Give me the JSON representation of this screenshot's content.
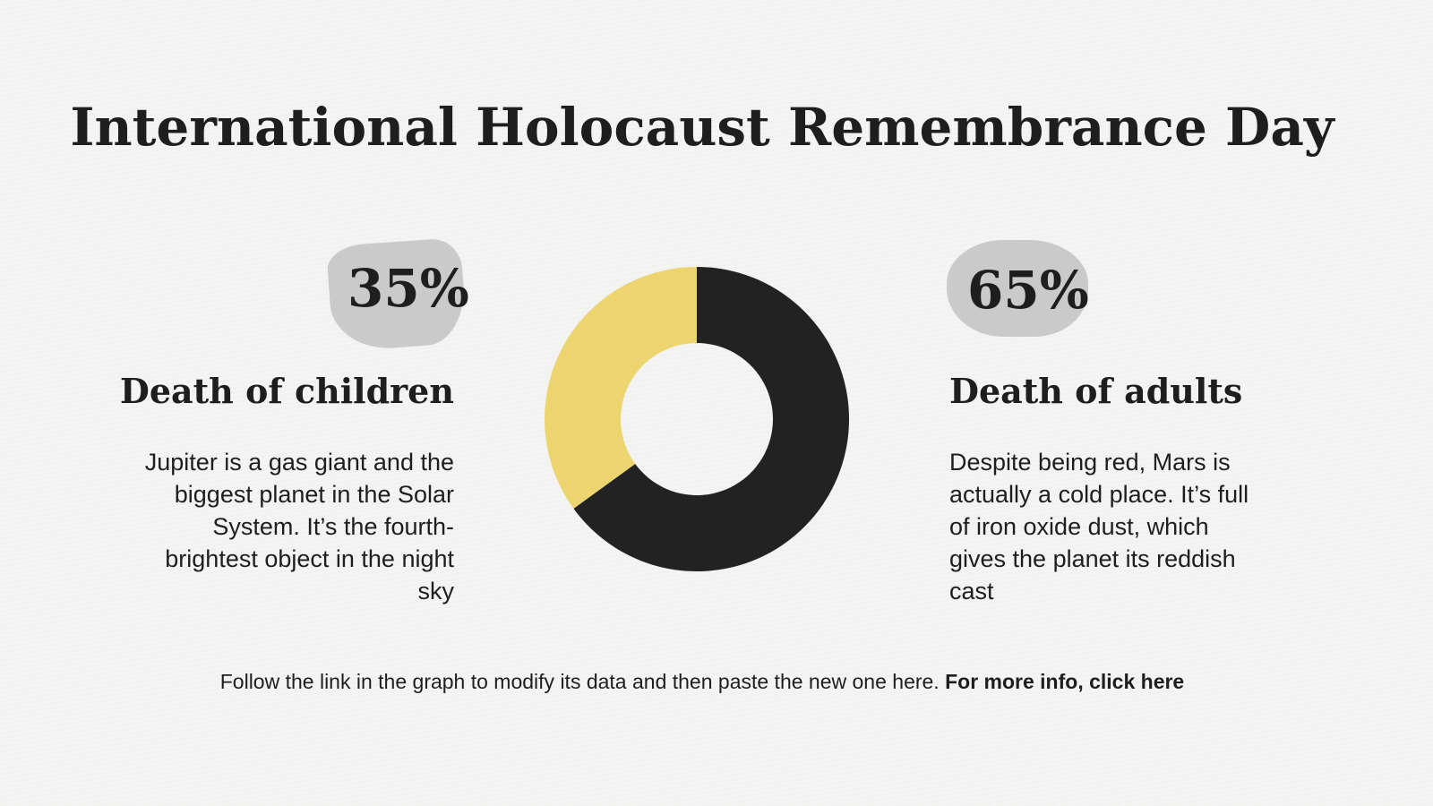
{
  "slide": {
    "title": "International Holocaust Remembrance Day",
    "left": {
      "percent": "35%",
      "heading": "Death of children",
      "body": "Jupiter is a gas giant and the biggest planet in the Solar System. It’s the fourth-brightest object in the night sky"
    },
    "right": {
      "percent": "65%",
      "heading": "Death of adults",
      "body": "Despite being red, Mars is actually a cold place. It’s full of iron oxide dust, which gives the planet its reddish cast"
    },
    "footer": {
      "text": "Follow the link in the graph to modify its data and then paste the new one here.",
      "link": "For more info, click here"
    }
  },
  "colors": {
    "yellow": "#ecd46f",
    "black": "#222222",
    "blob": "#cbcaca"
  },
  "chart_data": {
    "type": "pie",
    "donut": true,
    "title": "",
    "categories": [
      "Death of children",
      "Death of adults"
    ],
    "values": [
      35,
      65
    ],
    "colors": [
      "#ecd46f",
      "#222222"
    ],
    "legend": "none"
  }
}
